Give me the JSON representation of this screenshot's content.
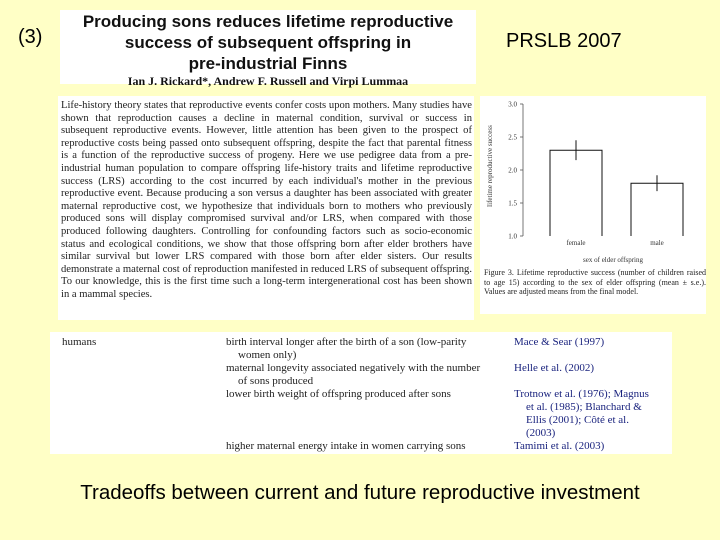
{
  "slide_number": "(3)",
  "journal": "PRSLB 2007",
  "paper": {
    "title_lines": [
      "Producing sons reduces lifetime reproductive",
      "success of subsequent offspring in",
      "pre-industrial Finns"
    ],
    "authors": "Ian J. Rickard*, Andrew F. Russell and Virpi Lummaa",
    "abstract": "Life-history theory states that reproductive events confer costs upon mothers. Many studies have shown that reproduction causes a decline in maternal condition, survival or success in subsequent reproductive events. However, little attention has been given to the prospect of reproductive costs being passed onto subsequent offspring, despite the fact that parental fitness is a function of the reproductive success of progeny. Here we use pedigree data from a pre-industrial human population to compare offspring life-history traits and lifetime reproductive success (LRS) according to the cost incurred by each individual's mother in the previous reproductive event. Because producing a son versus a daughter has been associated with greater maternal reproductive cost, we hypothesize that individuals born to mothers who previously produced sons will display compromised survival and/or LRS, when compared with those produced following daughters. Controlling for confounding factors such as socio-economic status and ecological conditions, we show that those offspring born after elder brothers have similar survival but lower LRS compared with those born after elder sisters. Our results demonstrate a maternal cost of reproduction manifested in reduced LRS of subsequent offspring. To our knowledge, this is the first time such a long-term intergenerational cost has been shown in a mammal species."
  },
  "figure": {
    "ylabel": "lifetime reproductive success",
    "xlabel": "sex of elder offspring",
    "caption": "Figure 3. Lifetime reproductive success (number of children raised to age 15) according to the sex of elder offspring (mean ± s.e.). Values are adjusted means from the final model."
  },
  "chart_data": {
    "type": "bar",
    "categories": [
      "female",
      "male"
    ],
    "values": [
      2.3,
      1.8
    ],
    "errors": [
      0.15,
      0.12
    ],
    "xlabel": "sex of elder offspring",
    "ylabel": "lifetime reproductive success",
    "yticks": [
      "1.0",
      "1.5",
      "2.0",
      "2.5",
      "3.0"
    ],
    "ylim": [
      1.0,
      3.0
    ]
  },
  "table": {
    "category": "humans",
    "rows": [
      {
        "effect_lines": [
          "birth interval longer after the birth of a son (low-parity",
          "women only)"
        ],
        "refs_lines": [
          "Mace & Sear (1997)"
        ]
      },
      {
        "effect_lines": [
          "maternal longevity associated negatively with the number",
          "of sons produced"
        ],
        "refs_lines": [
          "Helle et al. (2002)"
        ]
      },
      {
        "effect_lines": [
          "lower birth weight of offspring produced after sons"
        ],
        "refs_lines": [
          "Trotnow et al. (1976); Magnus",
          "et al. (1985); Blanchard &",
          "Ellis (2001); Côté et al.",
          "(2003)"
        ]
      },
      {
        "effect_lines": [
          "higher maternal energy intake in women carrying sons"
        ],
        "refs_lines": [
          "Tamimi et al. (2003)"
        ]
      }
    ]
  },
  "footer": "Tradeoffs between current and future reproductive investment"
}
